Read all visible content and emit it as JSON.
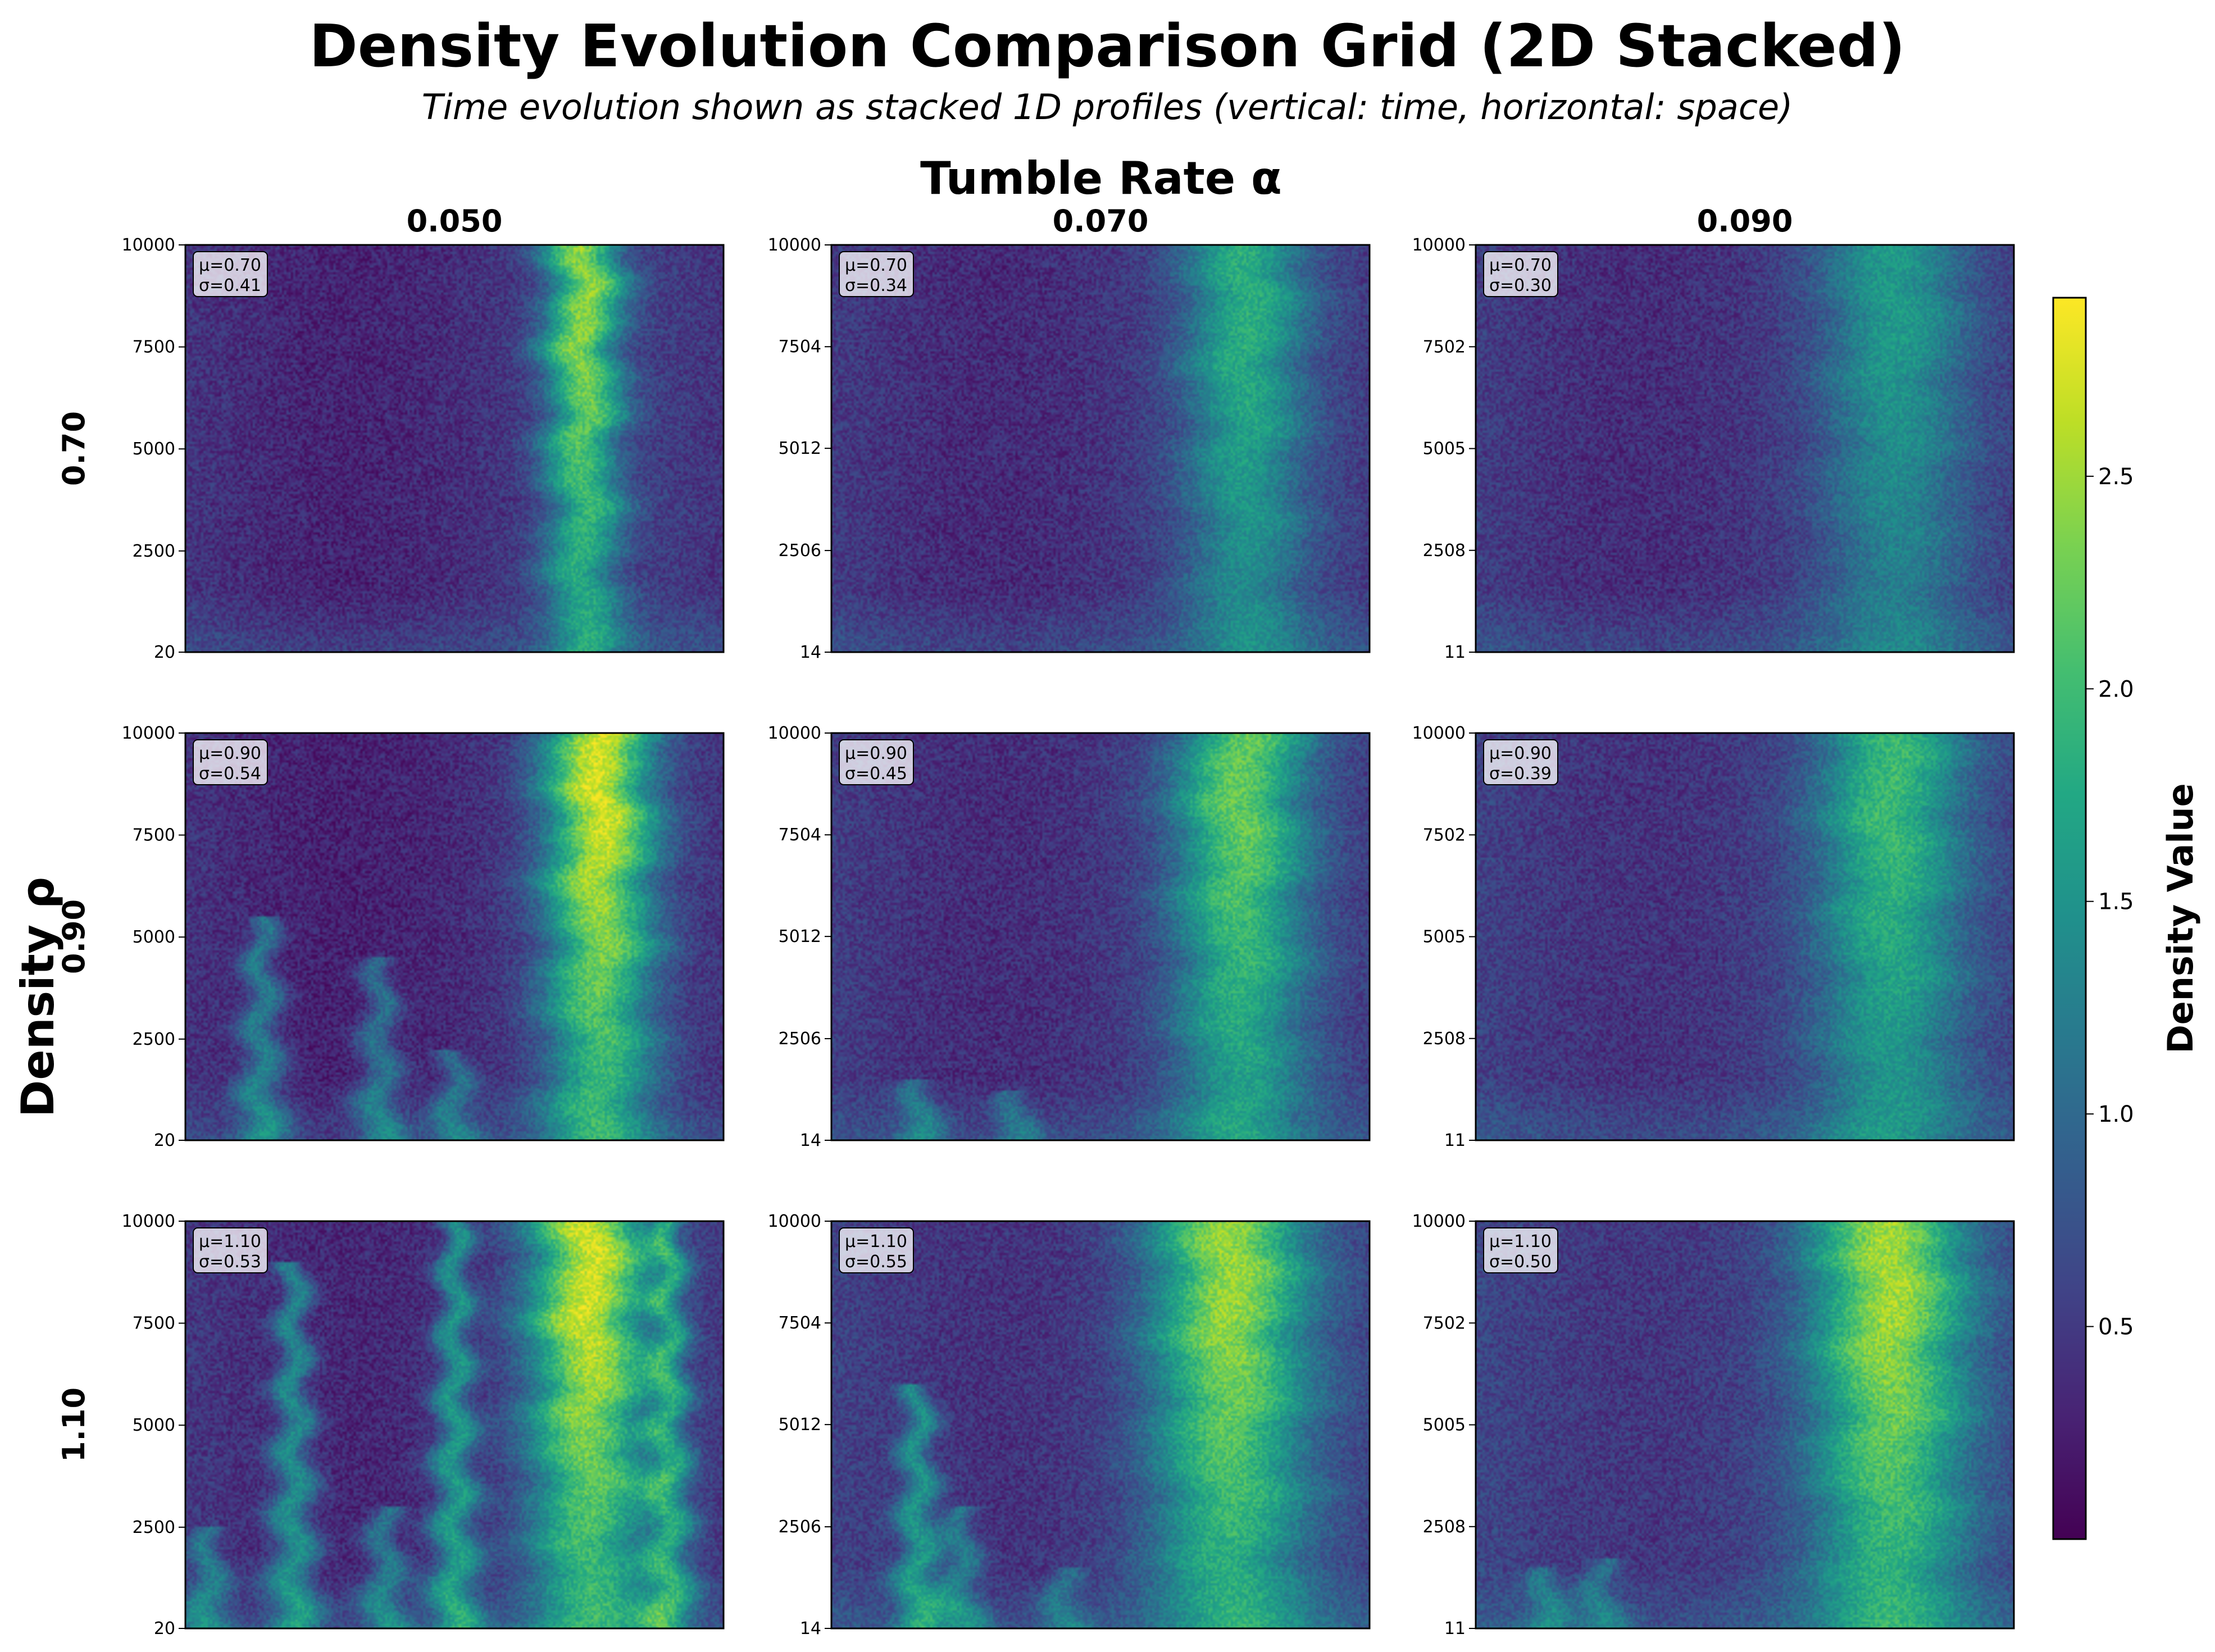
{
  "chart_data": {
    "type": "heatmap",
    "title": "Density Evolution Comparison Grid (2D Stacked)",
    "subtitle": "Time evolution shown as stacked 1D profiles (vertical: time, horizontal: space)",
    "column_axis_label": "Tumble Rate α",
    "row_axis_label": "Density ρ",
    "columns": [
      "0.050",
      "0.070",
      "0.090"
    ],
    "rows": [
      "0.70",
      "0.90",
      "1.10"
    ],
    "colormap": "viridis",
    "colorbar": {
      "label": "Density Value",
      "range": [
        0.0,
        2.92
      ],
      "ticks": [
        "0.5",
        "1.0",
        "1.5",
        "2.0",
        "2.5"
      ],
      "tick_values": [
        0.5,
        1.0,
        1.5,
        2.0,
        2.5
      ]
    },
    "panels": [
      {
        "row": "0.70",
        "col": "0.050",
        "yticks": [
          "20",
          "2500",
          "5000",
          "7500",
          "10000"
        ],
        "ytick_values": [
          20,
          2500,
          5000,
          7500,
          10000
        ],
        "mean_label": "μ=0.70",
        "std_label": "σ=0.41",
        "band_center": 0.74,
        "band_width": 0.07,
        "band_peak": 2.3,
        "background": 0.42,
        "clusters": []
      },
      {
        "row": "0.70",
        "col": "0.070",
        "yticks": [
          "14",
          "2506",
          "5012",
          "7504",
          "10000"
        ],
        "ytick_values": [
          14,
          2506,
          5012,
          7504,
          10000
        ],
        "mean_label": "μ=0.70",
        "std_label": "σ=0.34",
        "band_center": 0.77,
        "band_width": 0.11,
        "band_peak": 1.7,
        "background": 0.48,
        "clusters": []
      },
      {
        "row": "0.70",
        "col": "0.090",
        "yticks": [
          "11",
          "2508",
          "5005",
          "7502",
          "10000"
        ],
        "ytick_values": [
          11,
          2508,
          5005,
          7502,
          10000
        ],
        "mean_label": "μ=0.70",
        "std_label": "σ=0.30",
        "band_center": 0.78,
        "band_width": 0.13,
        "band_peak": 1.45,
        "background": 0.5,
        "clusters": []
      },
      {
        "row": "0.90",
        "col": "0.050",
        "yticks": [
          "20",
          "2500",
          "5000",
          "7500",
          "10000"
        ],
        "ytick_values": [
          20,
          2500,
          5000,
          7500,
          10000
        ],
        "mean_label": "μ=0.90",
        "std_label": "σ=0.54",
        "band_center": 0.77,
        "band_width": 0.1,
        "band_peak": 2.6,
        "background": 0.4,
        "clusters": [
          [
            0.14,
            0.55,
            1.4
          ],
          [
            0.36,
            0.45,
            1.3
          ],
          [
            0.5,
            0.22,
            1.2
          ]
        ]
      },
      {
        "row": "0.90",
        "col": "0.070",
        "yticks": [
          "14",
          "2506",
          "5012",
          "7504",
          "10000"
        ],
        "ytick_values": [
          14,
          2506,
          5012,
          7504,
          10000
        ],
        "mean_label": "μ=0.90",
        "std_label": "σ=0.45",
        "band_center": 0.76,
        "band_width": 0.12,
        "band_peak": 2.1,
        "background": 0.5,
        "clusters": [
          [
            0.16,
            0.15,
            1.3
          ],
          [
            0.34,
            0.12,
            1.2
          ]
        ]
      },
      {
        "row": "0.90",
        "col": "0.090",
        "yticks": [
          "11",
          "2508",
          "5005",
          "7502",
          "10000"
        ],
        "ytick_values": [
          11,
          2508,
          5005,
          7502,
          10000
        ],
        "mean_label": "μ=0.90",
        "std_label": "σ=0.39",
        "band_center": 0.77,
        "band_width": 0.13,
        "band_peak": 1.85,
        "background": 0.55,
        "clusters": []
      },
      {
        "row": "1.10",
        "col": "0.050",
        "yticks": [
          "20",
          "2500",
          "5000",
          "7500",
          "10000"
        ],
        "ytick_values": [
          20,
          2500,
          5000,
          7500,
          10000
        ],
        "mean_label": "μ=1.10",
        "std_label": "σ=0.53",
        "band_center": 0.75,
        "band_width": 0.11,
        "band_peak": 2.6,
        "background": 0.45,
        "clusters": [
          [
            0.2,
            0.9,
            1.6
          ],
          [
            0.5,
            1.0,
            1.7
          ],
          [
            0.37,
            0.3,
            1.4
          ],
          [
            0.04,
            0.25,
            1.3
          ],
          [
            0.9,
            1.0,
            1.6
          ]
        ]
      },
      {
        "row": "1.10",
        "col": "0.070",
        "yticks": [
          "14",
          "2506",
          "5012",
          "7504",
          "10000"
        ],
        "ytick_values": [
          14,
          2506,
          5012,
          7504,
          10000
        ],
        "mean_label": "μ=1.10",
        "std_label": "σ=0.55",
        "band_center": 0.74,
        "band_width": 0.14,
        "band_peak": 2.35,
        "background": 0.55,
        "clusters": [
          [
            0.16,
            0.6,
            1.7
          ],
          [
            0.24,
            0.3,
            1.4
          ],
          [
            0.43,
            0.15,
            1.2
          ]
        ]
      },
      {
        "row": "1.10",
        "col": "0.090",
        "yticks": [
          "11",
          "2508",
          "5005",
          "7502",
          "10000"
        ],
        "ytick_values": [
          11,
          2508,
          5005,
          7502,
          10000
        ],
        "mean_label": "μ=1.10",
        "std_label": "σ=0.50",
        "band_center": 0.77,
        "band_width": 0.14,
        "band_peak": 2.4,
        "background": 0.6,
        "clusters": [
          [
            0.13,
            0.15,
            1.3
          ],
          [
            0.23,
            0.17,
            1.3
          ]
        ]
      }
    ]
  }
}
